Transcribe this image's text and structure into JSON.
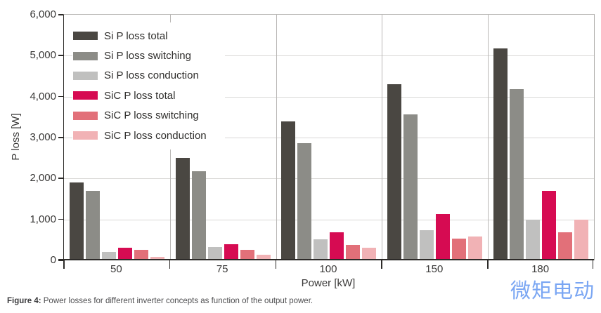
{
  "watermark": {
    "text": "微矩电动",
    "color": "#7aa6f3"
  },
  "caption": {
    "prefix": "Figure 4:",
    "text": " Power losses for different inverter concepts as function of the output power."
  },
  "chart_data": {
    "type": "bar",
    "title": "",
    "categories": [
      "50",
      "75",
      "100",
      "150",
      "180"
    ],
    "series": [
      {
        "name": "Si P loss total",
        "color": "#4a4742",
        "values": [
          1900,
          2500,
          3400,
          4300,
          5170
        ]
      },
      {
        "name": "Si P loss switching",
        "color": "#8c8c87",
        "values": [
          1700,
          2170,
          2870,
          3570,
          4180
        ]
      },
      {
        "name": "Si P loss conduction",
        "color": "#c0c0bf",
        "values": [
          210,
          330,
          510,
          740,
          1000
        ]
      },
      {
        "name": "SiC P loss total",
        "color": "#d60b52",
        "values": [
          310,
          400,
          690,
          1130,
          1700
        ]
      },
      {
        "name": "SiC P loss switching",
        "color": "#e27079",
        "values": [
          260,
          260,
          380,
          540,
          680
        ]
      },
      {
        "name": "SiC P loss conduction",
        "color": "#f1b2b5",
        "values": [
          80,
          130,
          310,
          590,
          1000
        ]
      }
    ],
    "xlabel": "Power [kW]",
    "ylabel": "P loss [W]",
    "ylim": [
      0,
      6000
    ],
    "yticks": [
      0,
      1000,
      2000,
      3000,
      4000,
      5000,
      6000
    ],
    "ytick_labels": [
      "0",
      "1,000",
      "2,000",
      "3,000",
      "4,000",
      "5,000",
      "6,000"
    ],
    "grid": true,
    "legend_position": "top-left-inside"
  }
}
